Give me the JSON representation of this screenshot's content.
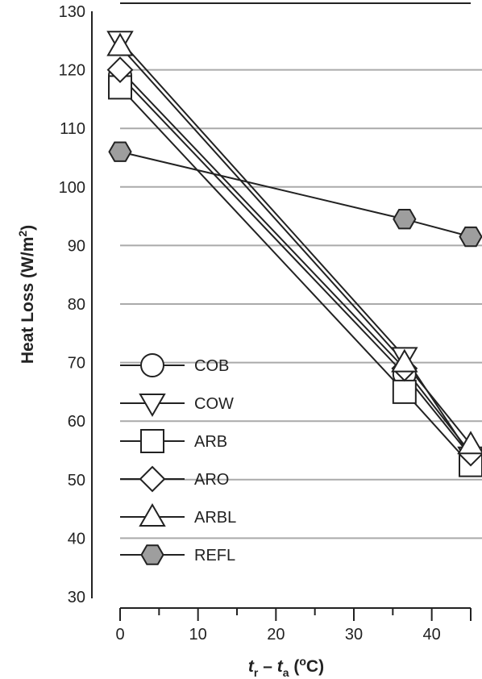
{
  "chart_data": {
    "type": "line",
    "title": "",
    "xlabel": {
      "t": "t",
      "t_sub": "r",
      "dash": " – ",
      "t2": "t",
      "t2_sub": "a",
      "unit_open": " (",
      "unit_sup": "o",
      "unit_close": "C)"
    },
    "ylabel": {
      "main": "Heat Loss (W/m",
      "sup": "2",
      "close": ")"
    },
    "xlim": [
      0,
      45
    ],
    "ylim": [
      30,
      130
    ],
    "xticks": [
      0,
      10,
      20,
      30,
      40
    ],
    "yticks": [
      30,
      40,
      50,
      60,
      70,
      80,
      90,
      100,
      110,
      120,
      130
    ],
    "grid": "horizontal",
    "legend": "lower-left",
    "colors": {
      "line": "#222222",
      "grid": "#aaaaaa",
      "open_marker_fill": "#ffffff",
      "refl_marker_fill": "#9e9e9e"
    },
    "series": [
      {
        "name": "COB",
        "marker": "circle",
        "x": [
          0,
          36.5,
          45
        ],
        "y": [
          119,
          68,
          54
        ]
      },
      {
        "name": "COW",
        "marker": "triangle-down",
        "x": [
          0,
          36.5,
          45
        ],
        "y": [
          125,
          71,
          54
        ]
      },
      {
        "name": "ARB",
        "marker": "square",
        "x": [
          0,
          36.5,
          45
        ],
        "y": [
          117,
          65,
          52.5
        ]
      },
      {
        "name": "ARO",
        "marker": "diamond",
        "x": [
          0,
          36.5,
          45
        ],
        "y": [
          120,
          69,
          54.5
        ]
      },
      {
        "name": "ARBL",
        "marker": "triangle-up",
        "x": [
          0,
          36.5,
          45
        ],
        "y": [
          124,
          70,
          56
        ]
      },
      {
        "name": "REFL",
        "marker": "hexagon",
        "x": [
          0,
          36.5,
          45
        ],
        "y": [
          106,
          94.5,
          91.5
        ]
      }
    ]
  }
}
